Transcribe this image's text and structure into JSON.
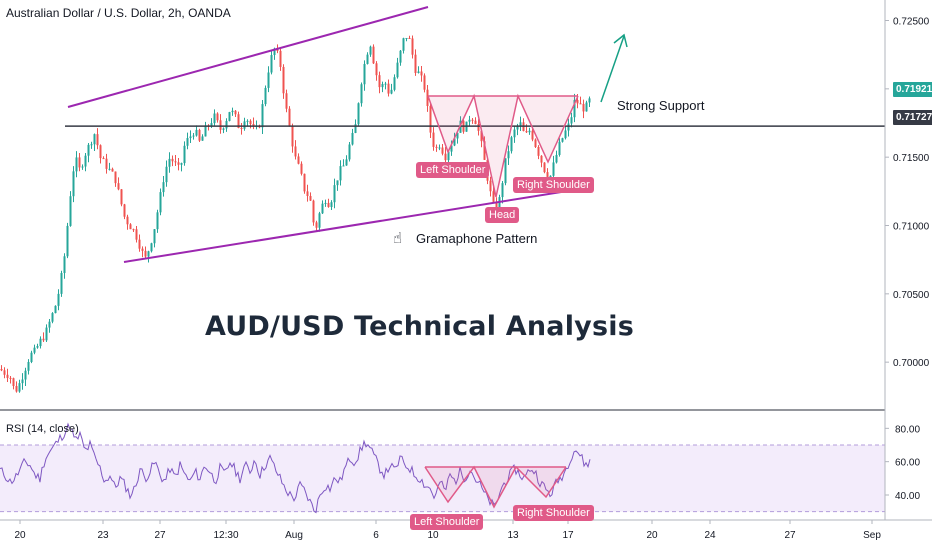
{
  "header": {
    "symbol_line": "Australian Dollar / U.S. Dollar, 2h, OANDA"
  },
  "rsi_header": {
    "label": "RSI (14, close)"
  },
  "overlay": {
    "title": "AUD/USD Technical Analysis",
    "support_label": "Strong Support",
    "pattern_label": "Gramaphone Pattern",
    "annotations": {
      "left_shoulder": "Left Shoulder",
      "head": "Head",
      "right_shoulder": "Right Shoulder"
    },
    "rsi_annotations": {
      "left_shoulder": "Left Shoulder",
      "right_shoulder": "Right Shoulder"
    }
  },
  "price_tags": {
    "current": "0.71921",
    "support": "0.71727"
  },
  "colors": {
    "up": "#26a69a",
    "down": "#ef5350",
    "trendline": "#9c27b0",
    "support_line": "#363a45",
    "pattern": "#e05a88",
    "arrow": "#16a085",
    "rsi_line": "#7e57c2",
    "rsi_band": "#f3ecfb",
    "current_tag": "#26a69a",
    "support_tag": "#363a45"
  },
  "chart_data": {
    "type": "candlestick",
    "instrument": "Australian Dollar / U.S. Dollar",
    "timeframe": "2h",
    "source": "OANDA",
    "x_tick_labels": [
      "20",
      "23",
      "27",
      "12:30",
      "Aug",
      "6",
      "10",
      "13",
      "17",
      "20",
      "24",
      "27",
      "Sep"
    ],
    "y_tick_labels": [
      "0.72500",
      "0.72000",
      "0.71500",
      "0.71000",
      "0.70500",
      "0.70000"
    ],
    "ylim": [
      0.6965,
      0.7265
    ],
    "support_level": 0.71727,
    "last_price": 0.71921,
    "close_path": [
      [
        0,
        0.6995
      ],
      [
        5,
        0.6992
      ],
      [
        10,
        0.699
      ],
      [
        15,
        0.6978
      ],
      [
        20,
        0.6985
      ],
      [
        25,
        0.6995
      ],
      [
        30,
        0.7005
      ],
      [
        35,
        0.7008
      ],
      [
        40,
        0.7015
      ],
      [
        45,
        0.702
      ],
      [
        50,
        0.703
      ],
      [
        55,
        0.704
      ],
      [
        60,
        0.7055
      ],
      [
        65,
        0.708
      ],
      [
        70,
        0.712
      ],
      [
        75,
        0.715
      ],
      [
        80,
        0.714
      ],
      [
        85,
        0.7152
      ],
      [
        90,
        0.716
      ],
      [
        95,
        0.7168
      ],
      [
        100,
        0.715
      ],
      [
        105,
        0.7145
      ],
      [
        110,
        0.714
      ],
      [
        115,
        0.7135
      ],
      [
        120,
        0.712
      ],
      [
        125,
        0.7105
      ],
      [
        130,
        0.71
      ],
      [
        135,
        0.7095
      ],
      [
        140,
        0.7085
      ],
      [
        145,
        0.7075
      ],
      [
        150,
        0.7085
      ],
      [
        155,
        0.71
      ],
      [
        160,
        0.712
      ],
      [
        165,
        0.714
      ],
      [
        170,
        0.715
      ],
      [
        175,
        0.7145
      ],
      [
        180,
        0.714
      ],
      [
        185,
        0.716
      ],
      [
        190,
        0.7165
      ],
      [
        195,
        0.717
      ],
      [
        200,
        0.716
      ],
      [
        205,
        0.717
      ],
      [
        210,
        0.7175
      ],
      [
        215,
        0.718
      ],
      [
        220,
        0.717
      ],
      [
        225,
        0.7175
      ],
      [
        230,
        0.7185
      ],
      [
        235,
        0.718
      ],
      [
        240,
        0.717
      ],
      [
        245,
        0.718
      ],
      [
        250,
        0.7175
      ],
      [
        255,
        0.7168
      ],
      [
        260,
        0.7175
      ],
      [
        265,
        0.72
      ],
      [
        270,
        0.722
      ],
      [
        275,
        0.723
      ],
      [
        280,
        0.722
      ],
      [
        285,
        0.719
      ],
      [
        290,
        0.717
      ],
      [
        295,
        0.715
      ],
      [
        300,
        0.714
      ],
      [
        305,
        0.7125
      ],
      [
        310,
        0.712
      ],
      [
        315,
        0.7095
      ],
      [
        320,
        0.711
      ],
      [
        325,
        0.712
      ],
      [
        330,
        0.7115
      ],
      [
        335,
        0.713
      ],
      [
        340,
        0.714
      ],
      [
        345,
        0.7145
      ],
      [
        350,
        0.716
      ],
      [
        355,
        0.717
      ],
      [
        360,
        0.72
      ],
      [
        365,
        0.722
      ],
      [
        370,
        0.7235
      ],
      [
        375,
        0.7215
      ],
      [
        380,
        0.72
      ],
      [
        385,
        0.7205
      ],
      [
        390,
        0.7195
      ],
      [
        395,
        0.721
      ],
      [
        400,
        0.7225
      ],
      [
        405,
        0.724
      ],
      [
        410,
        0.7235
      ],
      [
        415,
        0.7215
      ],
      [
        420,
        0.721
      ],
      [
        425,
        0.72
      ],
      [
        430,
        0.717
      ],
      [
        435,
        0.7155
      ],
      [
        440,
        0.716
      ],
      [
        445,
        0.715
      ],
      [
        450,
        0.7158
      ],
      [
        455,
        0.7165
      ],
      [
        460,
        0.7175
      ],
      [
        465,
        0.717
      ],
      [
        470,
        0.718
      ],
      [
        475,
        0.7178
      ],
      [
        480,
        0.7165
      ],
      [
        485,
        0.7145
      ],
      [
        490,
        0.7125
      ],
      [
        495,
        0.711
      ],
      [
        500,
        0.712
      ],
      [
        505,
        0.7145
      ],
      [
        510,
        0.716
      ],
      [
        515,
        0.717
      ],
      [
        520,
        0.7175
      ],
      [
        525,
        0.7165
      ],
      [
        530,
        0.717
      ],
      [
        535,
        0.716
      ],
      [
        540,
        0.715
      ],
      [
        545,
        0.714
      ],
      [
        550,
        0.7135
      ],
      [
        555,
        0.7148
      ],
      [
        560,
        0.716
      ],
      [
        565,
        0.7168
      ],
      [
        570,
        0.7175
      ],
      [
        575,
        0.7192
      ],
      [
        580,
        0.7188
      ],
      [
        585,
        0.7185
      ],
      [
        590,
        0.7192
      ]
    ],
    "rsi_close_path": [
      [
        0,
        55
      ],
      [
        5,
        52
      ],
      [
        10,
        48
      ],
      [
        15,
        50
      ],
      [
        20,
        55
      ],
      [
        25,
        60
      ],
      [
        30,
        58
      ],
      [
        35,
        52
      ],
      [
        40,
        50
      ],
      [
        45,
        62
      ],
      [
        50,
        66
      ],
      [
        55,
        70
      ],
      [
        60,
        74
      ],
      [
        65,
        78
      ],
      [
        70,
        82
      ],
      [
        75,
        72
      ],
      [
        80,
        76
      ],
      [
        85,
        66
      ],
      [
        90,
        70
      ],
      [
        95,
        62
      ],
      [
        100,
        56
      ],
      [
        105,
        48
      ],
      [
        110,
        52
      ],
      [
        115,
        44
      ],
      [
        120,
        50
      ],
      [
        125,
        46
      ],
      [
        130,
        40
      ],
      [
        135,
        44
      ],
      [
        140,
        56
      ],
      [
        145,
        50
      ],
      [
        150,
        54
      ],
      [
        155,
        60
      ],
      [
        160,
        52
      ],
      [
        165,
        48
      ],
      [
        170,
        56
      ],
      [
        175,
        50
      ],
      [
        180,
        58
      ],
      [
        185,
        52
      ],
      [
        190,
        48
      ],
      [
        195,
        54
      ],
      [
        200,
        50
      ],
      [
        205,
        58
      ],
      [
        210,
        54
      ],
      [
        215,
        48
      ],
      [
        220,
        56
      ],
      [
        225,
        52
      ],
      [
        230,
        60
      ],
      [
        235,
        55
      ],
      [
        240,
        50
      ],
      [
        245,
        58
      ],
      [
        250,
        54
      ],
      [
        255,
        62
      ],
      [
        260,
        52
      ],
      [
        265,
        58
      ],
      [
        270,
        62
      ],
      [
        275,
        56
      ],
      [
        280,
        50
      ],
      [
        285,
        44
      ],
      [
        290,
        40
      ],
      [
        295,
        38
      ],
      [
        300,
        46
      ],
      [
        305,
        42
      ],
      [
        310,
        36
      ],
      [
        315,
        30
      ],
      [
        320,
        40
      ],
      [
        325,
        46
      ],
      [
        330,
        44
      ],
      [
        335,
        50
      ],
      [
        340,
        48
      ],
      [
        345,
        56
      ],
      [
        350,
        62
      ],
      [
        355,
        60
      ],
      [
        360,
        66
      ],
      [
        365,
        72
      ],
      [
        370,
        68
      ],
      [
        375,
        62
      ],
      [
        380,
        56
      ],
      [
        385,
        52
      ],
      [
        390,
        58
      ],
      [
        395,
        54
      ],
      [
        400,
        62
      ],
      [
        405,
        58
      ],
      [
        410,
        56
      ],
      [
        415,
        52
      ],
      [
        420,
        50
      ],
      [
        425,
        46
      ],
      [
        430,
        44
      ],
      [
        435,
        38
      ],
      [
        440,
        48
      ],
      [
        445,
        42
      ],
      [
        450,
        52
      ],
      [
        455,
        48
      ],
      [
        460,
        54
      ],
      [
        465,
        50
      ],
      [
        470,
        56
      ],
      [
        475,
        50
      ],
      [
        480,
        46
      ],
      [
        485,
        40
      ],
      [
        490,
        36
      ],
      [
        495,
        32
      ],
      [
        500,
        42
      ],
      [
        505,
        48
      ],
      [
        510,
        52
      ],
      [
        515,
        56
      ],
      [
        520,
        52
      ],
      [
        525,
        50
      ],
      [
        530,
        56
      ],
      [
        535,
        54
      ],
      [
        540,
        48
      ],
      [
        545,
        44
      ],
      [
        550,
        40
      ],
      [
        555,
        46
      ],
      [
        560,
        50
      ],
      [
        565,
        54
      ],
      [
        570,
        62
      ],
      [
        575,
        68
      ],
      [
        580,
        64
      ],
      [
        585,
        58
      ],
      [
        590,
        60
      ]
    ],
    "rsi_y_tick_labels": [
      "80.00",
      "60.00",
      "40.00"
    ],
    "rsi_ylim": [
      25,
      88
    ],
    "rsi_band": [
      30,
      70
    ]
  }
}
